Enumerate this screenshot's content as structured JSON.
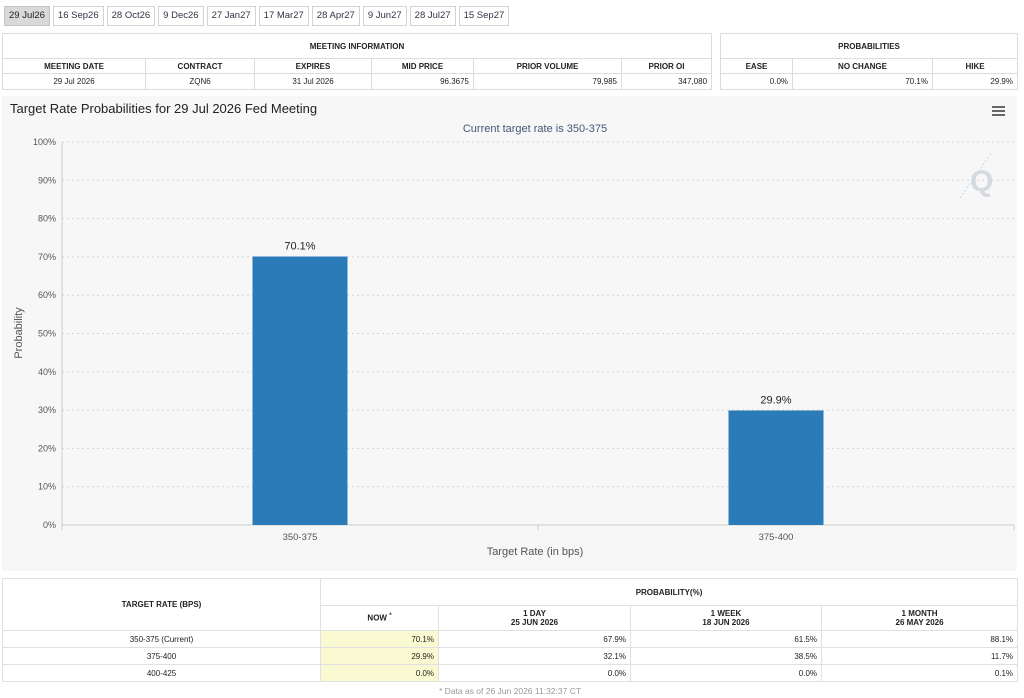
{
  "tabs": [
    "29 Jul26",
    "16 Sep26",
    "28 Oct26",
    "9 Dec26",
    "27 Jan27",
    "17 Mar27",
    "28 Apr27",
    "9 Jun27",
    "28 Jul27",
    "15 Sep27"
  ],
  "active_tab": 0,
  "meeting_info": {
    "title": "MEETING INFORMATION",
    "headers": [
      "MEETING DATE",
      "CONTRACT",
      "EXPIRES",
      "MID PRICE",
      "PRIOR VOLUME",
      "PRIOR OI"
    ],
    "values": [
      "29 Jul 2026",
      "ZQN6",
      "31 Jul 2026",
      "96.3675",
      "79,985",
      "347,080"
    ]
  },
  "probabilities": {
    "title": "PROBABILITIES",
    "headers": [
      "EASE",
      "NO CHANGE",
      "HIKE"
    ],
    "values": [
      "0.0%",
      "70.1%",
      "29.9%"
    ]
  },
  "chart": {
    "menu_icon": "hamburger-menu-icon",
    "watermark_icon": "q-logo-icon",
    "bar_color": "#2b7bb9"
  },
  "chart_data": {
    "type": "bar",
    "title": "Target Rate Probabilities for 29 Jul 2026 Fed Meeting",
    "subtitle": "Current target rate is 350-375",
    "categories": [
      "350-375",
      "375-400"
    ],
    "values": [
      70.1,
      29.9
    ],
    "data_labels": [
      "70.1%",
      "29.9%"
    ],
    "xlabel": "Target Rate (in bps)",
    "ylabel": "Probability",
    "ylim": [
      0,
      100
    ],
    "yticks": [
      "0%",
      "10%",
      "20%",
      "30%",
      "40%",
      "50%",
      "60%",
      "70%",
      "80%",
      "90%",
      "100%"
    ],
    "grid": true,
    "legend": "none"
  },
  "rate_table": {
    "header_left": "TARGET RATE (BPS)",
    "header_group": "PROBABILITY(%)",
    "cols": [
      {
        "label": "NOW",
        "marker": "*",
        "date": ""
      },
      {
        "label": "1 DAY",
        "date": "25 JUN 2026"
      },
      {
        "label": "1 WEEK",
        "date": "18 JUN 2026"
      },
      {
        "label": "1 MONTH",
        "date": "26 MAY 2026"
      }
    ],
    "rows": [
      {
        "rate": "350-375 (Current)",
        "vals": [
          "70.1%",
          "67.9%",
          "61.5%",
          "88.1%"
        ]
      },
      {
        "rate": "375-400",
        "vals": [
          "29.9%",
          "32.1%",
          "38.5%",
          "11.7%"
        ]
      },
      {
        "rate": "400-425",
        "vals": [
          "0.0%",
          "0.0%",
          "0.0%",
          "0.1%"
        ]
      }
    ],
    "footnote": "* Data as of 26 Jun 2026 11:32:37 CT"
  }
}
